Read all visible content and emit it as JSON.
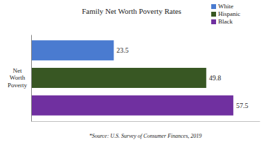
{
  "chart_data": {
    "type": "bar",
    "title": "Family Net Worth Poverty Rates",
    "orientation": "horizontal",
    "categories": [
      "Net Worth Poverty"
    ],
    "series": [
      {
        "name": "White",
        "color": "#4a7bd0",
        "values": [
          23.5
        ]
      },
      {
        "name": "Hispanic",
        "color": "#385723",
        "values": [
          49.8
        ]
      },
      {
        "name": "Black",
        "color": "#7030a0",
        "values": [
          57.5
        ]
      }
    ],
    "xlim": [
      0,
      65
    ],
    "data_labels": true,
    "tick_labels": "y",
    "legend": "top-right",
    "annotations": [
      "*Source: U.S. Survey of Consumer Finances, 2019"
    ]
  }
}
